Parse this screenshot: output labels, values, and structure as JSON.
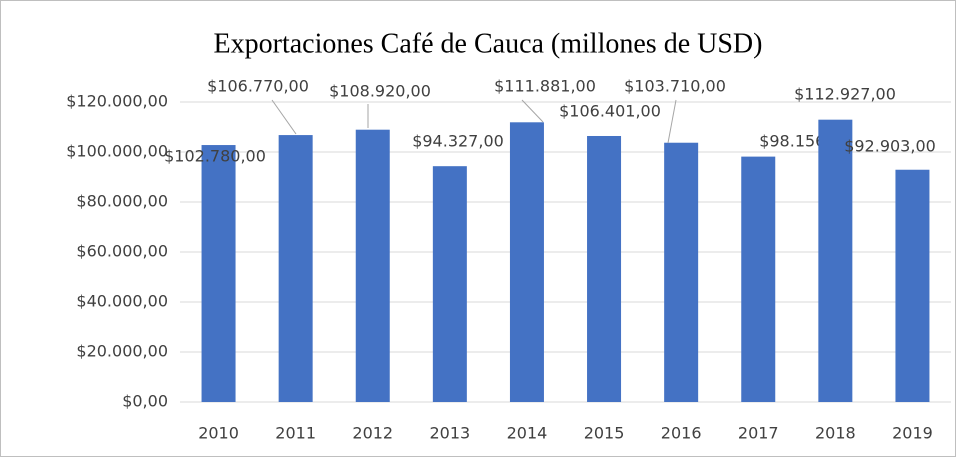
{
  "chart_data": {
    "type": "bar",
    "title": "Exportaciones Café de Cauca (millones de USD)",
    "categories": [
      "2010",
      "2011",
      "2012",
      "2013",
      "2014",
      "2015",
      "2016",
      "2017",
      "2018",
      "2019"
    ],
    "values": [
      102780,
      106770,
      108920,
      94327,
      111881,
      106401,
      103710,
      98156,
      112927,
      92903
    ],
    "value_labels": [
      "$102.780,00",
      "$106.770,00",
      "$108.920,00",
      "$94.327,00",
      "$111.881,00",
      "$106.401,00",
      "$103.710,00",
      "$98.156,00",
      "$112.927,00",
      "$92.903,00"
    ],
    "color": "#4472c4",
    "ylim": [
      0,
      120000
    ],
    "yticks": [
      {
        "value": 0,
        "label": "$0,00"
      },
      {
        "value": 20000,
        "label": "$20.000,00"
      },
      {
        "value": 40000,
        "label": "$40.000,00"
      },
      {
        "value": 60000,
        "label": "$60.000,00"
      },
      {
        "value": 80000,
        "label": "$80.000,00"
      },
      {
        "value": 100000,
        "label": "$100.000,00"
      },
      {
        "value": 120000,
        "label": "$120.000,00"
      }
    ],
    "grid": true
  }
}
